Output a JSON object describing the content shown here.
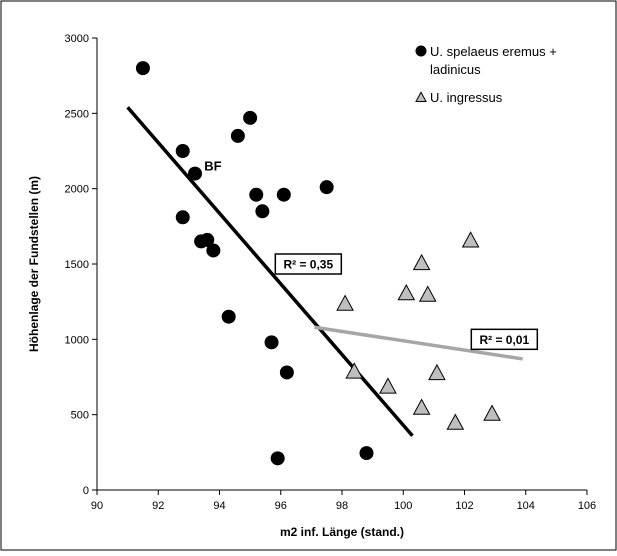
{
  "chart_data": {
    "type": "scatter",
    "xlabel": "m2 inf. Länge (stand.)",
    "ylabel": "Höhenlage der Fundstellen (m)",
    "xlim": [
      90,
      106
    ],
    "ylim": [
      0,
      3000
    ],
    "x_ticks": [
      90,
      92,
      94,
      96,
      98,
      100,
      102,
      104,
      106
    ],
    "y_ticks": [
      0,
      500,
      1000,
      1500,
      2000,
      2500,
      3000
    ],
    "x_tick_labels": [
      "90",
      "92",
      "94",
      "96",
      "98",
      "100",
      "102",
      "104",
      "106"
    ],
    "y_tick_labels": [
      "0",
      "500",
      "1000",
      "1500",
      "2000",
      "2500",
      "3000"
    ],
    "legend_position": "top-right",
    "grid": false,
    "series": [
      {
        "name": "U. spelaeus eremus + ladinicus",
        "marker": "circle",
        "color": "#000000",
        "points": [
          [
            91.5,
            2800
          ],
          [
            92.8,
            2250
          ],
          [
            93.2,
            2100
          ],
          [
            92.8,
            1810
          ],
          [
            93.4,
            1650
          ],
          [
            93.6,
            1660
          ],
          [
            93.8,
            1590
          ],
          [
            94.3,
            1150
          ],
          [
            94.6,
            2350
          ],
          [
            95.0,
            2470
          ],
          [
            95.2,
            1960
          ],
          [
            95.4,
            1850
          ],
          [
            96.1,
            1960
          ],
          [
            97.5,
            2010
          ],
          [
            95.7,
            980
          ],
          [
            96.2,
            780
          ],
          [
            95.9,
            210
          ],
          [
            98.8,
            245
          ]
        ]
      },
      {
        "name": "U. ingressus",
        "marker": "triangle",
        "color": "#bfbfbf",
        "points": [
          [
            98.1,
            1230
          ],
          [
            98.4,
            780
          ],
          [
            99.5,
            680
          ],
          [
            100.1,
            1300
          ],
          [
            100.6,
            1500
          ],
          [
            100.8,
            1290
          ],
          [
            101.1,
            770
          ],
          [
            102.2,
            1650
          ],
          [
            100.6,
            540
          ],
          [
            101.7,
            440
          ],
          [
            102.9,
            500
          ]
        ]
      }
    ],
    "trend_lines": [
      {
        "from": [
          91.0,
          2540
        ],
        "to": [
          100.3,
          360
        ],
        "color": "#000000"
      },
      {
        "from": [
          97.1,
          1080
        ],
        "to": [
          103.9,
          870
        ],
        "color": "#a6a6a6"
      }
    ],
    "annotations": [
      {
        "text": "BF",
        "x": 93.5,
        "y": 2120
      },
      {
        "text": "R² = 0,35",
        "x": 96.9,
        "y": 1500,
        "boxed": true
      },
      {
        "text": "R² = 0,01",
        "x": 103.3,
        "y": 1000,
        "boxed": true
      }
    ]
  }
}
